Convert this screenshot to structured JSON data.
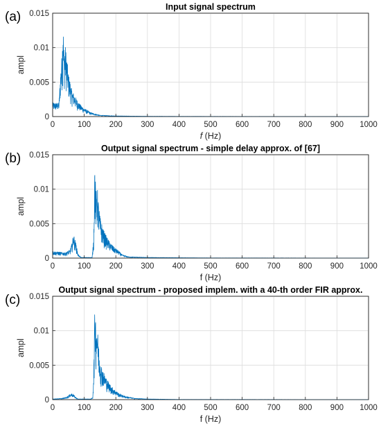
{
  "colors": {
    "series": "#0072BD",
    "axis": "#262626",
    "grid": "#dcdcdc"
  },
  "chart_data": [
    {
      "type": "line",
      "panel_label": "(a)",
      "title": "Input signal spectrum",
      "xlabel": {
        "italic": "f",
        "rest": " (Hz)"
      },
      "ylabel": "ampl",
      "xlim": [
        0,
        1000
      ],
      "ylim": [
        0,
        0.015
      ],
      "xticks": [
        0,
        100,
        200,
        300,
        400,
        500,
        600,
        700,
        800,
        900,
        1000
      ],
      "yticks": [
        0,
        0.005,
        0.01,
        0.015
      ],
      "ytick_labels": [
        "0",
        "0.005",
        "0.01",
        "0.015"
      ],
      "grid": true,
      "series": [
        {
          "x": [
            20,
            25,
            30,
            33,
            36,
            40,
            45,
            50,
            55,
            60,
            70,
            80,
            90,
            100,
            120,
            150,
            200,
            300,
            500,
            1000
          ],
          "y": [
            0.002,
            0.0065,
            0.0095,
            0.0141,
            0.0095,
            0.0104,
            0.0085,
            0.0062,
            0.0052,
            0.004,
            0.003,
            0.0022,
            0.0016,
            0.0012,
            0.0006,
            0.0002,
            0.0001,
            4e-05,
            2e-05,
            1e-05
          ]
        }
      ]
    },
    {
      "type": "line",
      "panel_label": "(b)",
      "title": "Output signal spectrum - simple delay approx. of [67]",
      "xlabel": {
        "italic": "",
        "rest": "f (Hz)"
      },
      "ylabel": "ampl",
      "xlim": [
        0,
        1000
      ],
      "ylim": [
        0,
        0.015
      ],
      "xticks": [
        0,
        100,
        200,
        300,
        400,
        500,
        600,
        700,
        800,
        900,
        1000
      ],
      "yticks": [
        0,
        0.005,
        0.01,
        0.015
      ],
      "ytick_labels": [
        "0",
        "0.005",
        "0.01",
        "0.015"
      ],
      "grid": true,
      "series": [
        {
          "x": [
            0,
            20,
            40,
            55,
            62,
            66,
            70,
            75,
            80,
            90,
            110,
            125,
            130,
            133,
            137,
            141,
            145,
            150,
            160,
            170,
            180,
            190,
            200,
            210,
            220,
            240,
            300,
            500,
            1000
          ],
          "y": [
            0.001,
            0.0009,
            0.0008,
            0.0012,
            0.0023,
            0.0036,
            0.0028,
            0.0019,
            0.0006,
            0.0001,
            0.0001,
            0.0001,
            0.003,
            0.0137,
            0.0097,
            0.0105,
            0.0082,
            0.006,
            0.0042,
            0.0032,
            0.0024,
            0.0018,
            0.0014,
            0.001,
            0.0005,
            0.0002,
            0.0001,
            3e-05,
            1e-05
          ]
        }
      ]
    },
    {
      "type": "line",
      "panel_label": "(c)",
      "title": "Output signal spectrum - proposed implem. with a 40-th order FIR approx.",
      "xlabel": {
        "italic": "",
        "rest": "f (Hz)"
      },
      "ylabel": "ampl",
      "xlim": [
        0,
        1000
      ],
      "ylim": [
        0,
        0.015
      ],
      "xticks": [
        0,
        100,
        200,
        300,
        400,
        500,
        600,
        700,
        800,
        900,
        1000
      ],
      "yticks": [
        0,
        0.005,
        0.01,
        0.015
      ],
      "ytick_labels": [
        "0",
        "0.005",
        "0.01",
        "0.015"
      ],
      "grid": true,
      "series": [
        {
          "x": [
            0,
            30,
            45,
            55,
            60,
            65,
            72,
            80,
            100,
            120,
            127,
            130,
            134,
            137,
            140,
            144,
            148,
            155,
            165,
            175,
            185,
            195,
            210,
            230,
            260,
            300,
            400,
            1000
          ],
          "y": [
            0.0001,
            0.0002,
            0.0004,
            0.0008,
            0.0009,
            0.0008,
            0.0004,
            0.0001,
            0.0001,
            0.0001,
            0.0003,
            0.004,
            0.0151,
            0.0108,
            0.0114,
            0.009,
            0.0065,
            0.0048,
            0.0036,
            0.0027,
            0.002,
            0.0015,
            0.0009,
            0.0005,
            0.0002,
            0.0001,
            3e-05,
            1e-05
          ]
        }
      ]
    }
  ]
}
